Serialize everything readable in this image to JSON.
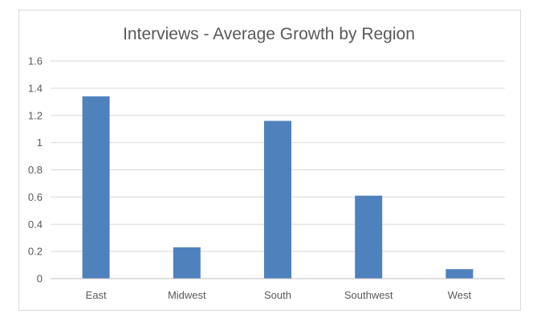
{
  "chart_data": {
    "type": "bar",
    "title": "Interviews - Average Growth by Region",
    "categories": [
      "East",
      "Midwest",
      "South",
      "Southwest",
      "West"
    ],
    "values": [
      1.34,
      0.23,
      1.16,
      0.61,
      0.07
    ],
    "ylim": [
      0,
      1.6
    ],
    "yticks": [
      "0",
      "0.2",
      "0.4",
      "0.6",
      "0.8",
      "1",
      "1.2",
      "1.4",
      "1.6"
    ],
    "grid": true,
    "legend": "none",
    "bar_color": "#4f81bd"
  }
}
